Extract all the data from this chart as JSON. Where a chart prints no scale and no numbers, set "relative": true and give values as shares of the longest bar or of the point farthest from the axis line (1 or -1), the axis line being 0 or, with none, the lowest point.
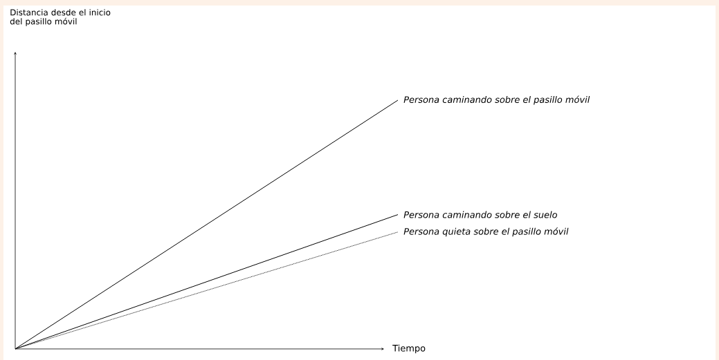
{
  "chart_data": {
    "type": "line",
    "relative": true,
    "xlabel": "Tiempo",
    "annotations": [
      "Distancia desde el inicio del pasillo móvil"
    ],
    "categories": [
      null,
      null
    ],
    "legend": false,
    "marker": "none",
    "series": [
      {
        "name": "Persona caminando sobre el pasillo móvil",
        "color": "#000000",
        "values": [
          0,
          1
        ]
      },
      {
        "name": "Persona caminando sobre el suelo",
        "color": "#000000",
        "values": [
          0,
          0.54
        ]
      },
      {
        "name": "Persona quieta sobre el pasillo móvil",
        "color": "#000000",
        "values": [
          0,
          0.47
        ],
        "line_style": "dotted"
      }
    ]
  }
}
